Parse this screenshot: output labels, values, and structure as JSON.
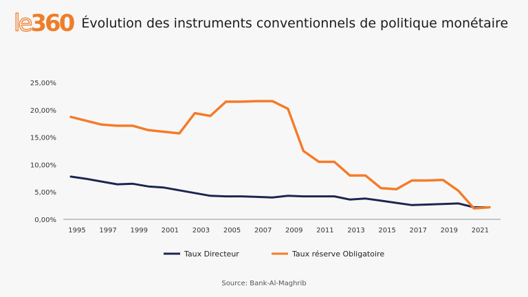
{
  "header": {
    "logo_prefix": "le",
    "logo_number": "360",
    "title": "Évolution des instruments conventionnels de politique monétaire"
  },
  "source": "Source: Bank-Al-Maghrib",
  "colors": {
    "brand": "#f07d28",
    "taux_directeur": "#1b2550",
    "taux_reserve": "#f47b29",
    "axis": "#c4c4c4"
  },
  "chart_data": {
    "type": "line",
    "title": "Évolution des instruments conventionnels de politique monétaire",
    "xlabel": "",
    "ylabel": "",
    "x": [
      1995,
      1996,
      1997,
      1998,
      1999,
      2000,
      2001,
      2002,
      2003,
      2004,
      2005,
      2006,
      2007,
      2008,
      2009,
      2010,
      2011,
      2012,
      2013,
      2014,
      2015,
      2016,
      2017,
      2018,
      2019,
      2020,
      2021,
      2022
    ],
    "x_tick_labels": [
      "1995",
      "1997",
      "1999",
      "2001",
      "2003",
      "2005",
      "2007",
      "2009",
      "2011",
      "2013",
      "2015",
      "2017",
      "2019",
      "2021"
    ],
    "y_tick_labels": [
      "0,00%",
      "5,00%",
      "10,00%",
      "15,00%",
      "20,00%",
      "25,00%"
    ],
    "y_ticks": [
      0,
      5,
      10,
      15,
      20,
      25
    ],
    "ylim": [
      0,
      25
    ],
    "grid": false,
    "legend_position": "bottom",
    "series": [
      {
        "name": "Taux Directeur",
        "color": "#1b2550",
        "values": [
          7.8,
          7.4,
          6.9,
          6.4,
          6.5,
          6.0,
          5.8,
          5.3,
          4.8,
          4.3,
          4.2,
          4.2,
          4.1,
          4.0,
          4.3,
          4.2,
          4.2,
          4.2,
          3.6,
          3.8,
          3.4,
          3.0,
          2.6,
          2.7,
          2.8,
          2.9,
          2.2,
          2.2
        ]
      },
      {
        "name": "Taux réserve Obligatoire",
        "color": "#f47b29",
        "values": [
          18.7,
          18.0,
          17.3,
          17.1,
          17.1,
          16.3,
          16.0,
          15.7,
          19.4,
          18.9,
          21.5,
          21.5,
          21.6,
          21.6,
          20.2,
          12.5,
          10.5,
          10.5,
          8.0,
          8.0,
          5.7,
          5.5,
          7.1,
          7.1,
          7.2,
          5.2,
          2.0,
          2.2
        ]
      }
    ]
  }
}
